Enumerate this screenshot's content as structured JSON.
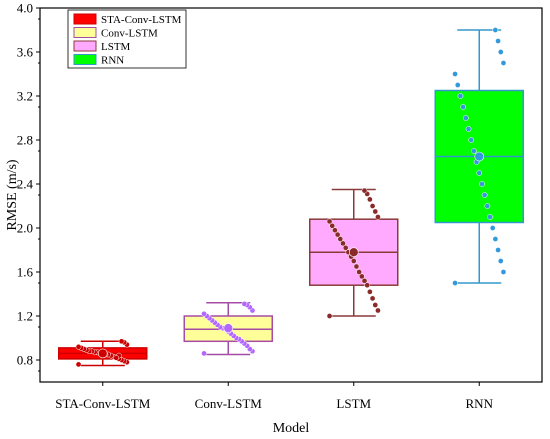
{
  "chart_data": {
    "type": "box",
    "xlabel": "Model",
    "ylabel": "RMSE  (m/s)",
    "ylim": [
      0.6,
      4.0
    ],
    "yticks": [
      "0.8",
      "1.2",
      "1.6",
      "2.0",
      "2.4",
      "2.8",
      "3.2",
      "3.6",
      "4.0"
    ],
    "categories": [
      "STA-Conv-LSTM",
      "Conv-LSTM",
      "LSTM",
      "RNN"
    ],
    "legend_position": "top-left",
    "series": [
      {
        "name": "STA-Conv-LSTM",
        "fill": "#ff0000",
        "edge": "#cc0000",
        "point_color": "#cc0000",
        "min": 0.75,
        "q1": 0.81,
        "median": 0.86,
        "q3": 0.91,
        "max": 0.97,
        "mean": 0.86,
        "points": [
          0.76,
          0.78,
          0.79,
          0.8,
          0.81,
          0.82,
          0.83,
          0.84,
          0.85,
          0.85,
          0.86,
          0.86,
          0.87,
          0.87,
          0.88,
          0.88,
          0.89,
          0.9,
          0.91,
          0.92,
          0.94,
          0.96,
          0.97,
          0.84,
          0.82
        ]
      },
      {
        "name": "Conv-LSTM",
        "fill": "#ffff99",
        "edge": "#a64ca6",
        "point_color": "#b266ff",
        "min": 0.85,
        "q1": 0.97,
        "median": 1.08,
        "q3": 1.2,
        "max": 1.32,
        "mean": 1.09,
        "points": [
          0.86,
          0.88,
          0.9,
          0.93,
          0.95,
          0.97,
          0.99,
          1.0,
          1.02,
          1.04,
          1.06,
          1.08,
          1.09,
          1.1,
          1.12,
          1.14,
          1.16,
          1.18,
          1.2,
          1.22,
          1.25,
          1.28,
          1.3,
          1.31
        ]
      },
      {
        "name": "LSTM",
        "fill": "#ffaaff",
        "edge": "#8b3a3a",
        "point_color": "#8b2a2a",
        "min": 1.2,
        "q1": 1.48,
        "median": 1.78,
        "q3": 2.08,
        "max": 2.35,
        "mean": 1.78,
        "points": [
          1.2,
          1.25,
          1.3,
          1.36,
          1.42,
          1.48,
          1.52,
          1.56,
          1.6,
          1.65,
          1.7,
          1.74,
          1.78,
          1.82,
          1.86,
          1.9,
          1.94,
          1.98,
          2.02,
          2.06,
          2.1,
          2.15,
          2.2,
          2.26,
          2.31,
          2.34
        ]
      },
      {
        "name": "RNN",
        "fill": "#00ff00",
        "edge": "#3399cc",
        "point_color": "#3399dd",
        "min": 1.5,
        "q1": 2.05,
        "median": 2.65,
        "q3": 3.25,
        "max": 3.8,
        "mean": 2.65,
        "points": [
          1.5,
          1.6,
          1.7,
          1.8,
          1.9,
          2.0,
          2.1,
          2.2,
          2.3,
          2.4,
          2.5,
          2.6,
          2.7,
          2.8,
          2.9,
          3.0,
          3.1,
          3.2,
          3.3,
          3.4,
          3.5,
          3.6,
          3.7,
          3.8
        ]
      }
    ]
  }
}
